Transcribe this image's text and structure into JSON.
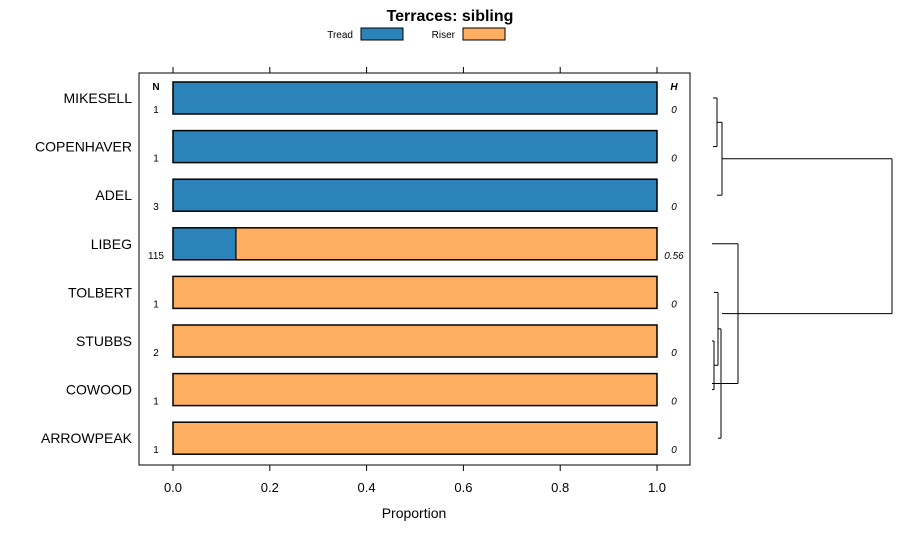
{
  "chart_data": {
    "type": "bar",
    "orientation": "horizontal",
    "stacked": true,
    "title": "Terraces: sibling",
    "xlabel": "Proportion",
    "xlim": [
      0,
      1
    ],
    "xticks": [
      "0.0",
      "0.2",
      "0.4",
      "0.6",
      "0.8",
      "1.0"
    ],
    "xtick_values": [
      0,
      0.2,
      0.4,
      0.6,
      0.8,
      1.0
    ],
    "n_header": "N",
    "h_header": "H",
    "categories": [
      "MIKESELL",
      "COPENHAVER",
      "ADEL",
      "LIBEG",
      "TOLBERT",
      "STUBBS",
      "COWOOD",
      "ARROWPEAK"
    ],
    "n_values": [
      "1",
      "1",
      "3",
      "115",
      "1",
      "2",
      "1",
      "1"
    ],
    "h_values": [
      "0",
      "0",
      "0",
      "0.56",
      "0",
      "0",
      "0",
      "0"
    ],
    "series": [
      {
        "name": "Tread",
        "color": "#2b83ba",
        "values": [
          1,
          1,
          1,
          0.13,
          0,
          0,
          0,
          0
        ]
      },
      {
        "name": "Riser",
        "color": "#fdae61",
        "values": [
          0,
          0,
          0,
          0.87,
          1,
          1,
          1,
          1
        ]
      }
    ],
    "legend_position": "top",
    "dendrogram": {
      "groups": [
        [
          "MIKESELL",
          "COPENHAVER",
          "ADEL"
        ],
        [
          "LIBEG",
          "TOLBERT",
          "STUBBS",
          "COWOOD",
          "ARROWPEAK"
        ]
      ]
    }
  }
}
